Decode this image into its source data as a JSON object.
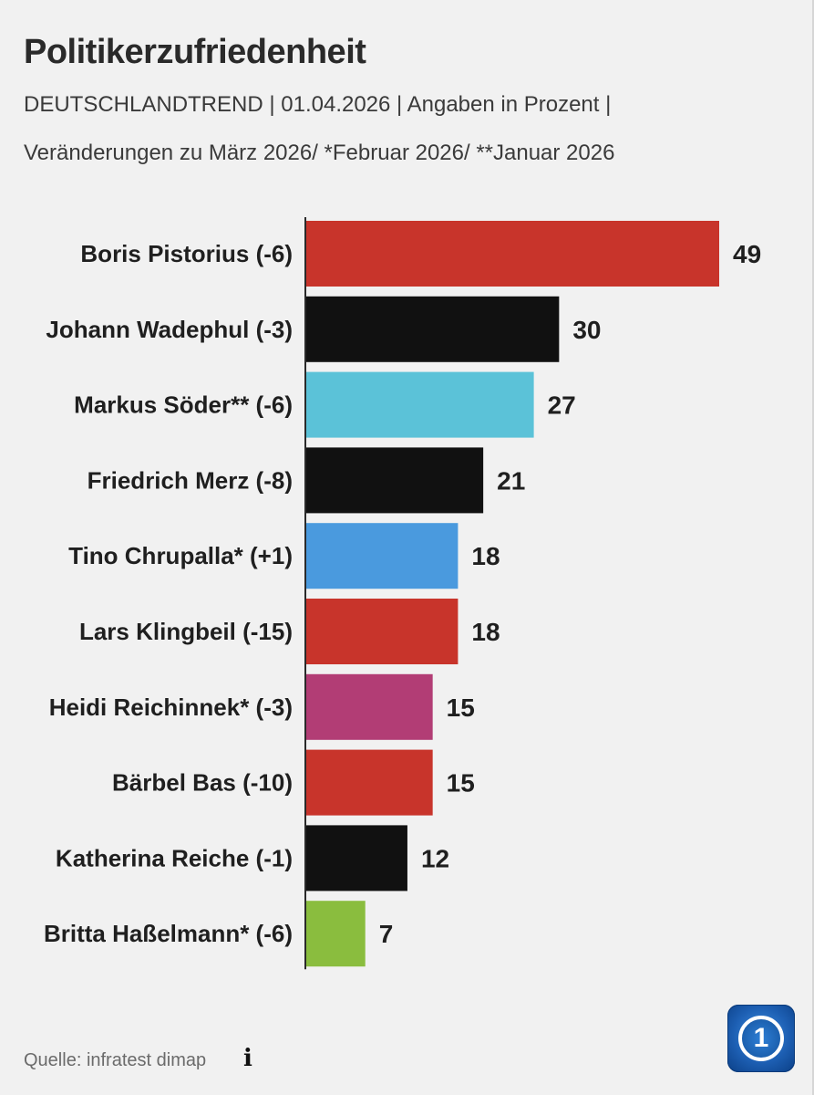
{
  "header": {
    "title": "Politikerzufriedenheit",
    "subtitle_line1": "DEUTSCHLANDTREND | 01.04.2026 | Angaben in Prozent |",
    "subtitle_line2": "Veränderungen zu März 2026/ *Februar 2026/ **Januar 2026"
  },
  "chart_data": {
    "type": "bar",
    "orientation": "horizontal",
    "title": "Politikerzufriedenheit",
    "xlabel": "",
    "ylabel": "",
    "xlim": [
      0,
      49
    ],
    "grid": false,
    "categories": [
      "Boris Pistorius (-6)",
      "Johann Wadephul (-3)",
      "Markus Söder** (-6)",
      "Friedrich Merz (-8)",
      "Tino Chrupalla* (+1)",
      "Lars Klingbeil (-15)",
      "Heidi Reichinnek* (-3)",
      "Bärbel Bas (-10)",
      "Katherina Reiche (-1)",
      "Britta Haßelmann* (-6)"
    ],
    "values": [
      49,
      30,
      27,
      21,
      18,
      18,
      15,
      15,
      12,
      7
    ],
    "colors": [
      "#c8342b",
      "#111111",
      "#5bc2d8",
      "#111111",
      "#4a9ade",
      "#c8342b",
      "#b23d75",
      "#c8342b",
      "#111111",
      "#8abd3e"
    ]
  },
  "footer": {
    "source_label": "Quelle:",
    "source_value": "infratest dimap",
    "info_glyph": "i",
    "info_icon": "info-icon",
    "logo_text": "1",
    "logo_icon": "tagesschau-logo-icon"
  }
}
